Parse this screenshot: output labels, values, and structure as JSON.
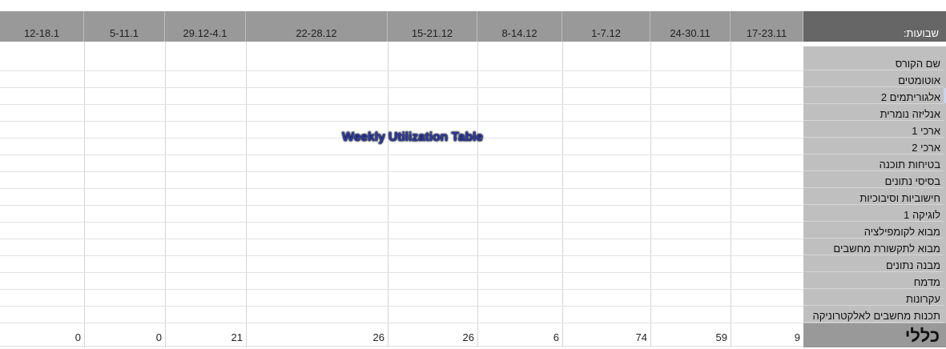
{
  "sheet": {
    "corner_label": "שבועות:",
    "week_headers": [
      "12-18.1",
      "5-11.1",
      "29.12-4.1",
      "22-28.12",
      "15-21.12",
      "8-14.12",
      "1-7.12",
      "24-30.11",
      "17-23.11"
    ],
    "courses": [
      "שם הקורס",
      "אוטומטים",
      "אלגוריתמים 2",
      "אנליזה נומרית",
      "ארכי 1",
      "ארכי 2",
      "בטיחות תוכנה",
      "בסיסי נתונים",
      "חישוביות וסיבוכיות",
      "לוגיקה 1",
      "מבוא לקומפילציה",
      "מבוא לתקשורת מחשבים",
      "מבנה נתונים",
      "מדמח",
      "עקרונות",
      "תכנות מחשבים לאלקטרוניקה"
    ],
    "total_label": "כללי",
    "totals": [
      "0",
      "0",
      "21",
      "26",
      "26",
      "6",
      "74",
      "59",
      "9"
    ],
    "overlay_title": "Weekly Utilization Table"
  }
}
